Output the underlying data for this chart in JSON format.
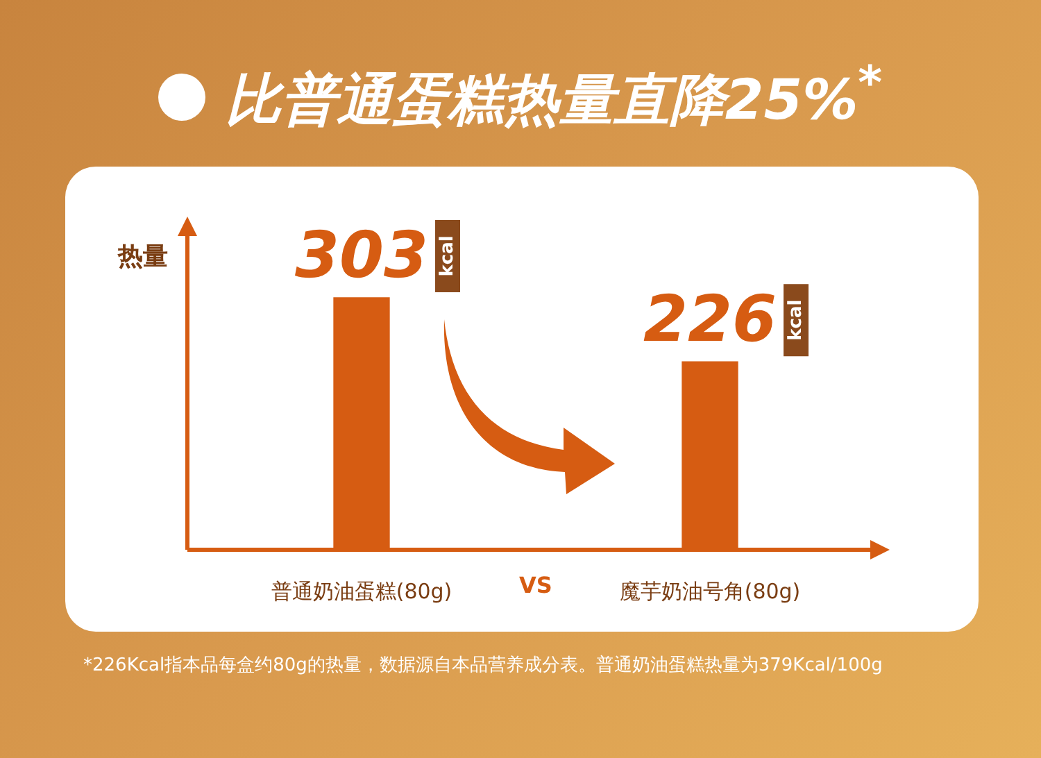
{
  "chart_data": {
    "type": "bar",
    "title": "比普通蛋糕热量直降25%$^{*}$",
    "ylabel": "热量",
    "categories": [
      "普通奶油蛋糕(80g)",
      "魔芋奶油号角(80g)"
    ],
    "values": [
      303,
      226
    ],
    "color": "#d65c12",
    "data_labels": true,
    "annotations": [
      "kcal",
      "kcal",
      "VS",
      "*226Kcal指本品每盒约80g的热量，数据源自本品营养成分表。普通奶油蛋糕热量为379Kcal/100g"
    ]
  }
}
